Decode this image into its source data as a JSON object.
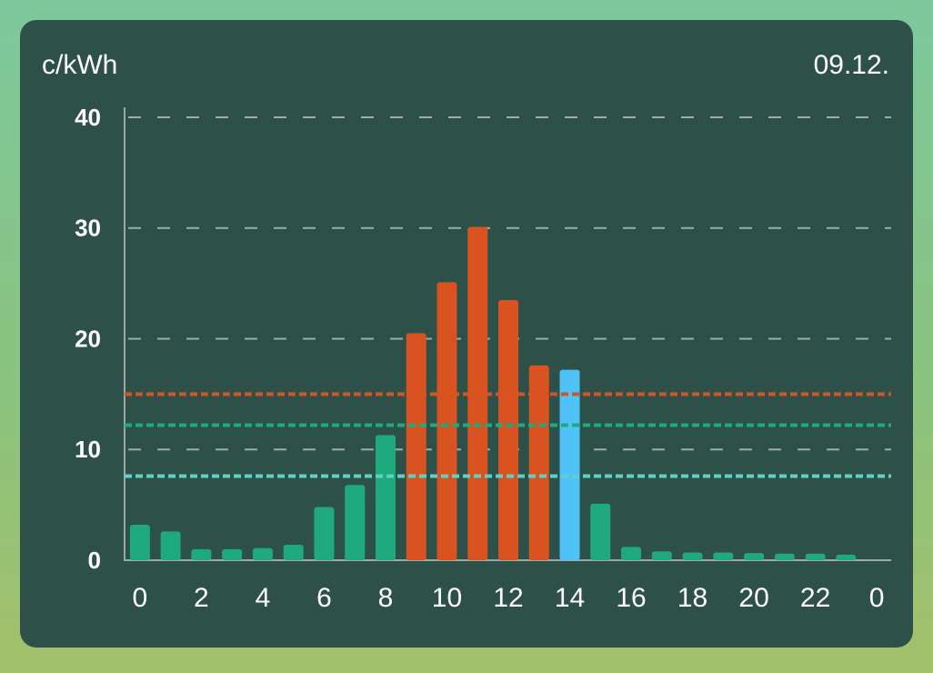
{
  "chart_data": {
    "type": "bar",
    "title": "c/kWh",
    "subtitle": "09.12.",
    "x": [
      0,
      1,
      2,
      3,
      4,
      5,
      6,
      7,
      8,
      9,
      10,
      11,
      12,
      13,
      14,
      15,
      16,
      17,
      18,
      19,
      20,
      21,
      22,
      23
    ],
    "values": [
      3.2,
      2.6,
      1.0,
      1.0,
      1.1,
      1.4,
      4.8,
      6.8,
      11.3,
      20.5,
      25.1,
      30.1,
      23.5,
      17.6,
      17.2,
      5.1,
      1.2,
      0.8,
      0.7,
      0.7,
      0.65,
      0.6,
      0.6,
      0.5
    ],
    "colors": [
      "#1faa7d",
      "#1faa7d",
      "#1faa7d",
      "#1faa7d",
      "#1faa7d",
      "#1faa7d",
      "#1faa7d",
      "#1faa7d",
      "#1faa7d",
      "#d8531f",
      "#d8531f",
      "#d8531f",
      "#d8531f",
      "#d8531f",
      "#4fc3f7",
      "#1faa7d",
      "#1faa7d",
      "#1faa7d",
      "#1faa7d",
      "#1faa7d",
      "#1faa7d",
      "#1faa7d",
      "#1faa7d",
      "#1faa7d"
    ],
    "xlim": [
      -0.5,
      24.5
    ],
    "xticks": [
      0,
      2,
      4,
      6,
      8,
      10,
      12,
      14,
      16,
      18,
      20,
      22,
      {
        "value": 24,
        "label": "0"
      }
    ],
    "ylim": [
      0,
      40
    ],
    "yticks": [
      0,
      10,
      20,
      30,
      40
    ],
    "grid": true,
    "reference_lines": [
      {
        "value": 15.0,
        "color": "#d8531f"
      },
      {
        "value": 12.2,
        "color": "#1faa7d"
      },
      {
        "value": 7.6,
        "color": "#5fd0c8"
      }
    ]
  }
}
